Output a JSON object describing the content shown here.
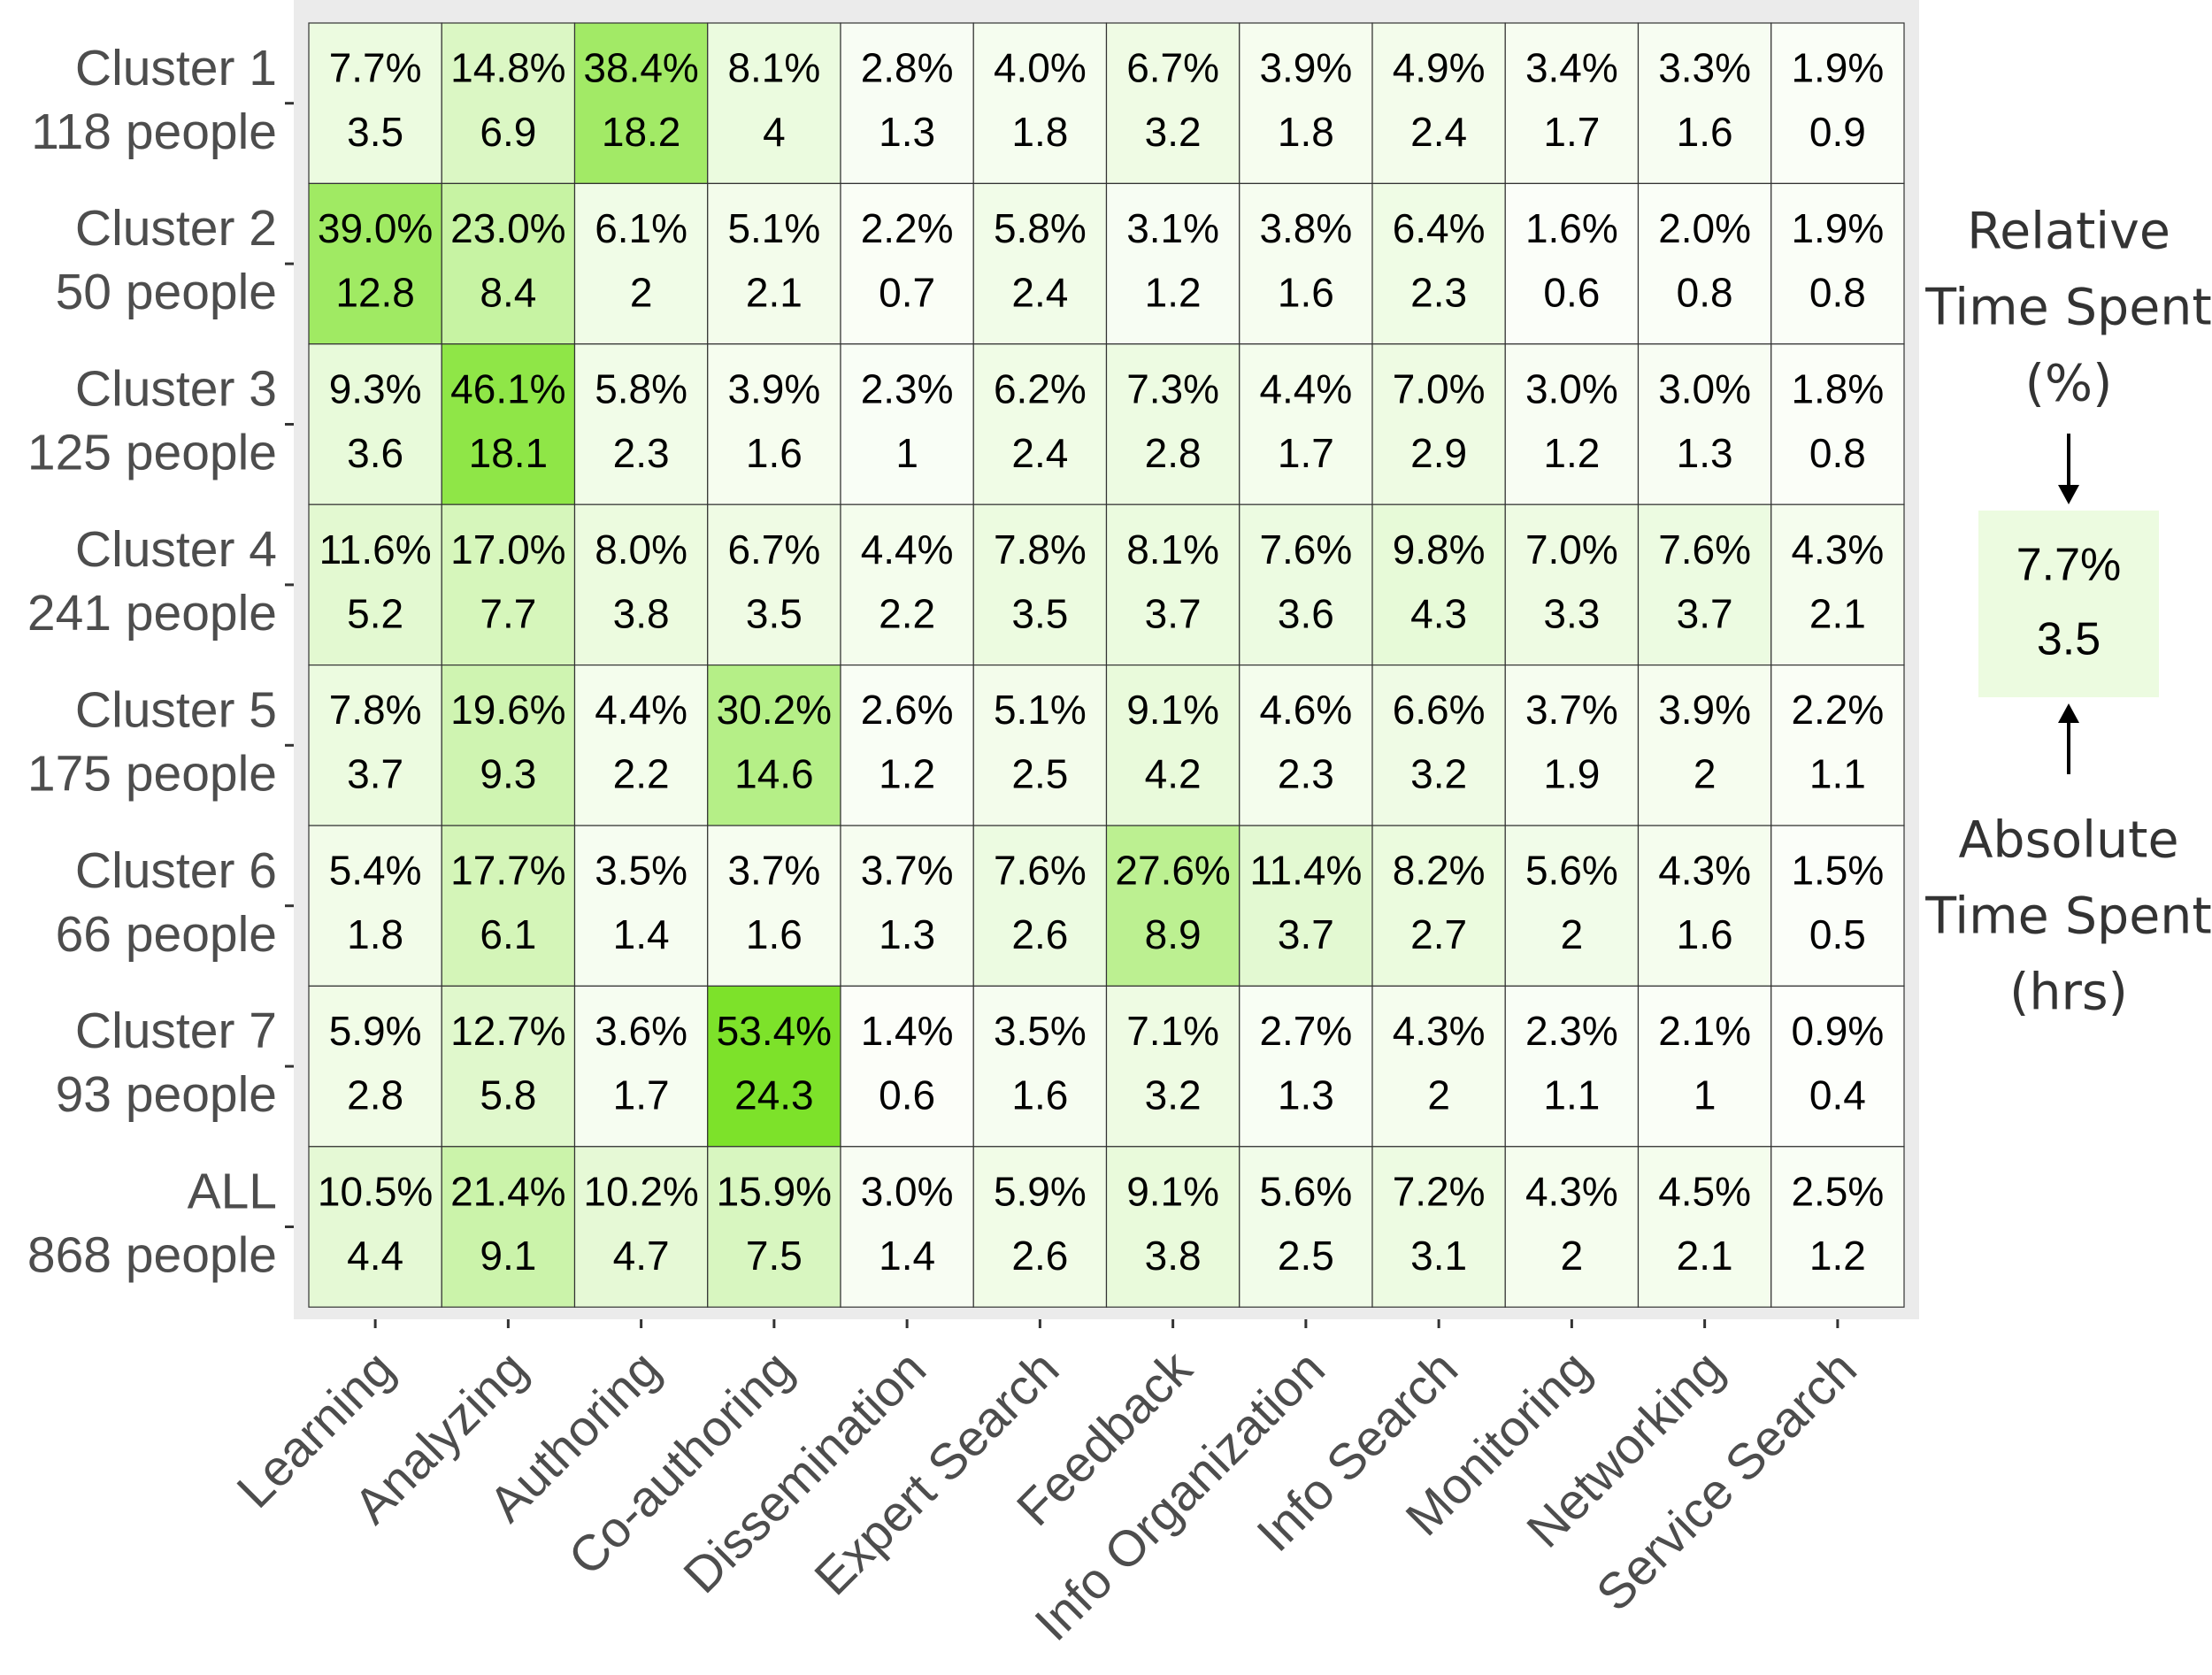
{
  "chart_data": {
    "type": "heatmap",
    "categories": [
      "Learning",
      "Analyzing",
      "Authoring",
      "Co-authoring",
      "Dissemination",
      "Expert Search",
      "Feedback",
      "Info Organization",
      "Info Search",
      "Monitoring",
      "Networking",
      "Service Search"
    ],
    "y_categories": [
      "Cluster 1",
      "Cluster 2",
      "Cluster 3",
      "Cluster 4",
      "Cluster 5",
      "Cluster 6",
      "Cluster 7",
      "ALL"
    ],
    "y_subtitles": [
      "118 people",
      "50 people",
      "125 people",
      "241 people",
      "175 people",
      "66 people",
      "93 people",
      "868 people"
    ],
    "values": [
      [
        7.7,
        14.8,
        38.4,
        8.1,
        2.8,
        4.0,
        6.7,
        3.9,
        4.9,
        3.4,
        3.3,
        1.9
      ],
      [
        39.0,
        23.0,
        6.1,
        5.1,
        2.2,
        5.8,
        3.1,
        3.8,
        6.4,
        1.6,
        2.0,
        1.9
      ],
      [
        9.3,
        46.1,
        5.8,
        3.9,
        2.3,
        6.2,
        7.3,
        4.4,
        7.0,
        3.0,
        3.0,
        1.8
      ],
      [
        11.6,
        17.0,
        8.0,
        6.7,
        4.4,
        7.8,
        8.1,
        7.6,
        9.8,
        7.0,
        7.6,
        4.3
      ],
      [
        7.8,
        19.6,
        4.4,
        30.2,
        2.6,
        5.1,
        9.1,
        4.6,
        6.6,
        3.7,
        3.9,
        2.2
      ],
      [
        5.4,
        17.7,
        3.5,
        3.7,
        3.7,
        7.6,
        27.6,
        11.4,
        8.2,
        5.6,
        4.3,
        1.5
      ],
      [
        5.9,
        12.7,
        3.6,
        53.4,
        1.4,
        3.5,
        7.1,
        2.7,
        4.3,
        2.3,
        2.1,
        0.9
      ],
      [
        10.5,
        21.4,
        10.2,
        15.9,
        3.0,
        5.9,
        9.1,
        5.6,
        7.2,
        4.3,
        4.5,
        2.5
      ]
    ],
    "value_labels": [
      [
        "7.7%",
        "14.8%",
        "38.4%",
        "8.1%",
        "2.8%",
        "4.0%",
        "6.7%",
        "3.9%",
        "4.9%",
        "3.4%",
        "3.3%",
        "1.9%"
      ],
      [
        "39.0%",
        "23.0%",
        "6.1%",
        "5.1%",
        "2.2%",
        "5.8%",
        "3.1%",
        "3.8%",
        "6.4%",
        "1.6%",
        "2.0%",
        "1.9%"
      ],
      [
        "9.3%",
        "46.1%",
        "5.8%",
        "3.9%",
        "2.3%",
        "6.2%",
        "7.3%",
        "4.4%",
        "7.0%",
        "3.0%",
        "3.0%",
        "1.8%"
      ],
      [
        "11.6%",
        "17.0%",
        "8.0%",
        "6.7%",
        "4.4%",
        "7.8%",
        "8.1%",
        "7.6%",
        "9.8%",
        "7.0%",
        "7.6%",
        "4.3%"
      ],
      [
        "7.8%",
        "19.6%",
        "4.4%",
        "30.2%",
        "2.6%",
        "5.1%",
        "9.1%",
        "4.6%",
        "6.6%",
        "3.7%",
        "3.9%",
        "2.2%"
      ],
      [
        "5.4%",
        "17.7%",
        "3.5%",
        "3.7%",
        "3.7%",
        "7.6%",
        "27.6%",
        "11.4%",
        "8.2%",
        "5.6%",
        "4.3%",
        "1.5%"
      ],
      [
        "5.9%",
        "12.7%",
        "3.6%",
        "53.4%",
        "1.4%",
        "3.5%",
        "7.1%",
        "2.7%",
        "4.3%",
        "2.3%",
        "2.1%",
        "0.9%"
      ],
      [
        "10.5%",
        "21.4%",
        "10.2%",
        "15.9%",
        "3.0%",
        "5.9%",
        "9.1%",
        "5.6%",
        "7.2%",
        "4.3%",
        "4.5%",
        "2.5%"
      ]
    ],
    "hours": [
      [
        3.5,
        6.9,
        18.2,
        4,
        1.3,
        1.8,
        3.2,
        1.8,
        2.4,
        1.7,
        1.6,
        0.9
      ],
      [
        12.8,
        8.4,
        2,
        2.1,
        0.7,
        2.4,
        1.2,
        1.6,
        2.3,
        0.6,
        0.8,
        0.8
      ],
      [
        3.6,
        18.1,
        2.3,
        1.6,
        1,
        2.4,
        2.8,
        1.7,
        2.9,
        1.2,
        1.3,
        0.8
      ],
      [
        5.2,
        7.7,
        3.8,
        3.5,
        2.2,
        3.5,
        3.7,
        3.6,
        4.3,
        3.3,
        3.7,
        2.1
      ],
      [
        3.7,
        9.3,
        2.2,
        14.6,
        1.2,
        2.5,
        4.2,
        2.3,
        3.2,
        1.9,
        2,
        1.1
      ],
      [
        1.8,
        6.1,
        1.4,
        1.6,
        1.3,
        2.6,
        8.9,
        3.7,
        2.7,
        2,
        1.6,
        0.5
      ],
      [
        2.8,
        5.8,
        1.7,
        24.3,
        0.6,
        1.6,
        3.2,
        1.3,
        2,
        1.1,
        1,
        0.4
      ],
      [
        4.4,
        9.1,
        4.7,
        7.5,
        1.4,
        2.6,
        3.8,
        2.5,
        3.1,
        2,
        2.1,
        1.2
      ]
    ],
    "color_low": "#ffffff",
    "color_high": "#7de22a",
    "legend": {
      "top": [
        "Relative",
        "Time Spent",
        "(%)"
      ],
      "bottom": [
        "Absolute",
        "Time Spent",
        "(hrs)"
      ],
      "example_value": 7.7,
      "example_label": "7.7%",
      "example_hours": 3.5
    }
  }
}
